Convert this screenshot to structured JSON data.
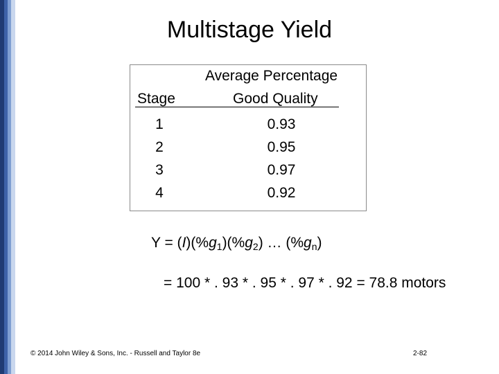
{
  "slide": {
    "title": "Multistage Yield",
    "accent_colors": [
      "#1f3b73",
      "#3d62a8",
      "#7f9fd2",
      "#c9d7ee"
    ]
  },
  "table": {
    "header_line1": "Average Percentage",
    "col1_header": "Stage",
    "col2_header": "Good Quality",
    "rows": [
      {
        "stage": "1",
        "value": "0.93"
      },
      {
        "stage": "2",
        "value": "0.95"
      },
      {
        "stage": "3",
        "value": "0.97"
      },
      {
        "stage": "4",
        "value": "0.92"
      }
    ]
  },
  "formula": {
    "line1": {
      "prefix": "Y = (",
      "i": "I",
      "mid1": ")(%",
      "g1": "g",
      "sub1": "1",
      "mid2": ")(%",
      "g2": "g",
      "sub2": "2",
      "mid3": ") … (%",
      "gn": "g",
      "subn": "n",
      "suffix": ")"
    },
    "line2": "= 100 * . 93 * . 95 * . 97 * . 92 = 78.8 motors"
  },
  "footer": {
    "copyright": "© 2014 John Wiley & Sons, Inc. - Russell and Taylor 8e",
    "page_number": "2-82"
  }
}
